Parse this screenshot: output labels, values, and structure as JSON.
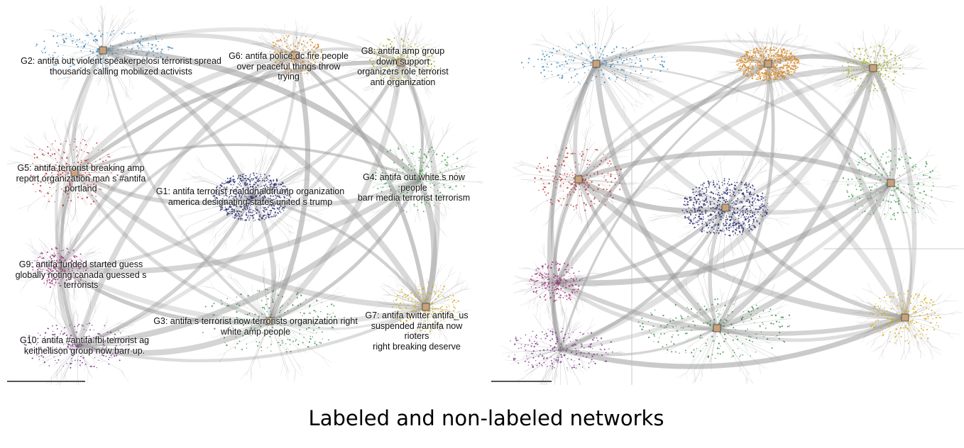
{
  "caption": "Labeled and non-labeled networks",
  "colors": {
    "G1": "#2a2f6e",
    "G2": "#3a86b8",
    "G3": "#3d8a4a",
    "G4": "#47a34f",
    "G5": "#c0302f",
    "G6": "#d48a2c",
    "G7": "#d1ad1f",
    "G8": "#a7ad2a",
    "G9": "#a1307b",
    "G10": "#7a3a86",
    "edge": "#9a9a9a"
  },
  "groups": [
    {
      "id": "G1",
      "text": "G1: antifa terrorist realdonaldtrump organization\namerica designating states united s trump"
    },
    {
      "id": "G2",
      "text": "G2: antifa out violent speakerpelosi terrorist spread\nthousands calling mobilized activists"
    },
    {
      "id": "G3",
      "text": "G3: antifa s terrorist now terrorists organization right\nwhite amp people"
    },
    {
      "id": "G4",
      "text": "G4: antifa out white s now people\nbarr media terrorist terrorism"
    },
    {
      "id": "G5",
      "text": "G5: antifa terrorist breaking amp\nreport organization man s #antifa\nportland"
    },
    {
      "id": "G6",
      "text": "G6: antifa police dc fire people\nover peaceful things throw\ntrying"
    },
    {
      "id": "G7",
      "text": "G7: antifa twitter antifa_us\nsuspended #antifa now rioters\nright breaking deserve"
    },
    {
      "id": "G8",
      "text": "G8: antifa amp group\ndown support\norganizers role terrorist\nanti organization"
    },
    {
      "id": "G9",
      "text": "G9: antifa funded started guess\nglobally rioting canada guessed s\nterrorists"
    },
    {
      "id": "G10",
      "text": "G10: antifa #antifa fbi terrorist ag\nkeithellison group now barr up."
    }
  ]
}
